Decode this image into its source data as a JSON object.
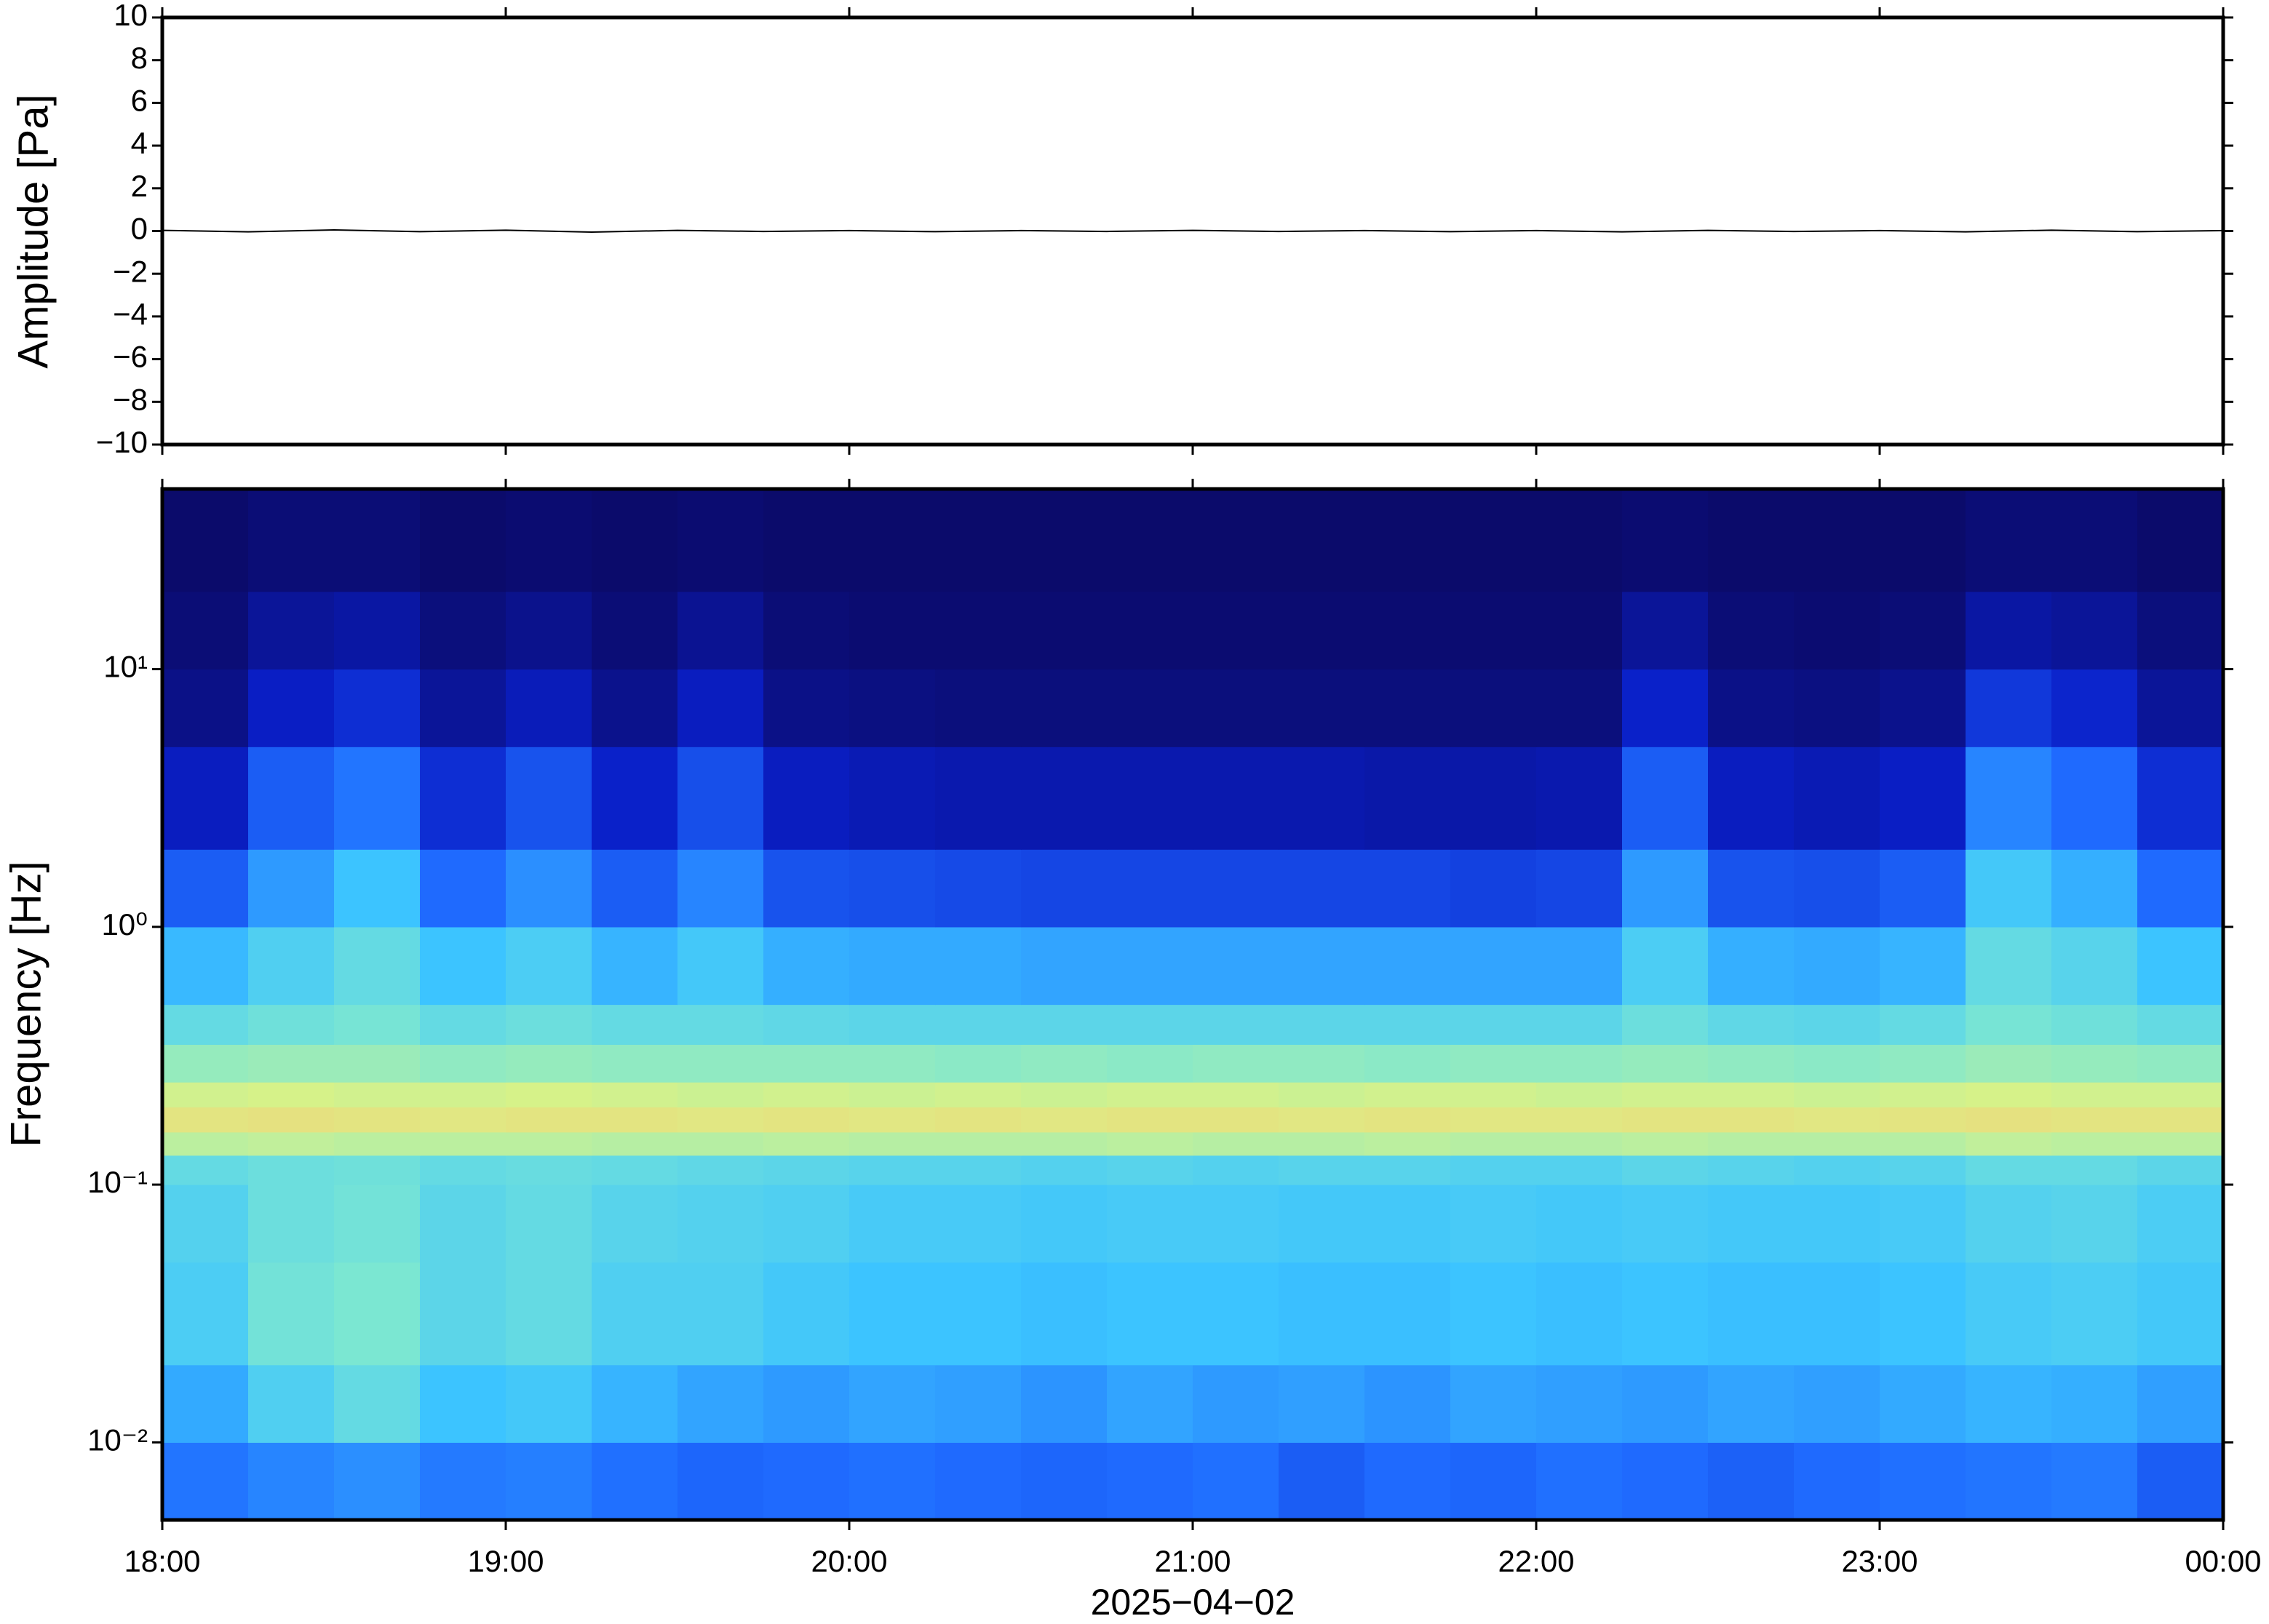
{
  "chart_data": [
    {
      "type": "line",
      "ylabel": "Amplitude [Pa]",
      "color": "#000000",
      "xlim": [
        18,
        24
      ],
      "x": [
        18,
        18.25,
        18.5,
        18.75,
        19,
        19.25,
        19.5,
        19.75,
        20,
        20.25,
        20.5,
        20.75,
        21,
        21.25,
        21.5,
        21.75,
        22,
        22.25,
        22.5,
        22.75,
        23,
        23.25,
        23.5,
        23.75,
        24
      ],
      "values": [
        0.03,
        -0.04,
        0.05,
        -0.03,
        0.04,
        -0.05,
        0.03,
        -0.02,
        0.02,
        -0.03,
        0.02,
        -0.02,
        0.03,
        -0.02,
        0.02,
        -0.03,
        0.02,
        -0.04,
        0.03,
        -0.02,
        0.02,
        -0.04,
        0.04,
        -0.03,
        0.02
      ],
      "ylim": [
        -10,
        10
      ],
      "yticks": [
        {
          "value": -10,
          "label": "−10"
        },
        {
          "value": -8,
          "label": "−8"
        },
        {
          "value": -6,
          "label": "−6"
        },
        {
          "value": -4,
          "label": "−4"
        },
        {
          "value": -2,
          "label": "−2"
        },
        0,
        2,
        4,
        6,
        8,
        10
      ]
    },
    {
      "type": "spectrogram",
      "ylabel": "Frequency [Hz]",
      "xlabel": "2025−04−02",
      "xlim": [
        18,
        24
      ],
      "xticks": [
        {
          "value": 18,
          "label": "18:00"
        },
        {
          "value": 19,
          "label": "19:00"
        },
        {
          "value": 20,
          "label": "20:00"
        },
        {
          "value": 21,
          "label": "21:00"
        },
        {
          "value": 22,
          "label": "22:00"
        },
        {
          "value": 23,
          "label": "23:00"
        },
        {
          "value": 24,
          "label": "00:00"
        }
      ],
      "ylim": [
        0.005,
        50
      ],
      "log_y": true,
      "yticks": [
        {
          "value": 0.01,
          "label": "10⁻²"
        },
        {
          "value": 0.1,
          "label": "10⁻¹"
        },
        {
          "value": 1,
          "label": "10⁰"
        },
        {
          "value": 10,
          "label": "10¹"
        }
      ],
      "colormap": [
        "#0b0b6b",
        "#0a1fc8",
        "#1f6cff",
        "#3cc4ff",
        "#7ee8d0",
        "#d8f288",
        "#ffc070"
      ],
      "time_bins": [
        18,
        18.25,
        18.5,
        18.75,
        19,
        19.25,
        19.5,
        19.75,
        20,
        20.25,
        20.5,
        20.75,
        21,
        21.25,
        21.5,
        21.75,
        22,
        22.25,
        22.5,
        22.75,
        23,
        23.25,
        23.5,
        23.75,
        24
      ],
      "freq_bins": [
        0.005,
        0.01,
        0.02,
        0.05,
        0.1,
        0.13,
        0.16,
        0.2,
        0.25,
        0.35,
        0.5,
        1,
        2,
        5,
        10,
        20,
        50
      ],
      "z": [
        [
          0.35,
          0.38,
          0.4,
          0.36,
          0.37,
          0.34,
          0.32,
          0.33,
          0.34,
          0.33,
          0.32,
          0.33,
          0.34,
          0.3,
          0.33,
          0.32,
          0.34,
          0.33,
          0.31,
          0.33,
          0.34,
          0.35,
          0.36,
          0.3
        ],
        [
          0.45,
          0.55,
          0.6,
          0.5,
          0.52,
          0.47,
          0.44,
          0.42,
          0.44,
          0.43,
          0.41,
          0.44,
          0.42,
          0.43,
          0.41,
          0.44,
          0.43,
          0.42,
          0.44,
          0.43,
          0.45,
          0.47,
          0.46,
          0.43
        ],
        [
          0.54,
          0.64,
          0.66,
          0.58,
          0.6,
          0.55,
          0.55,
          0.52,
          0.5,
          0.5,
          0.49,
          0.5,
          0.5,
          0.49,
          0.49,
          0.5,
          0.49,
          0.5,
          0.49,
          0.49,
          0.5,
          0.53,
          0.54,
          0.52
        ],
        [
          0.56,
          0.62,
          0.64,
          0.58,
          0.6,
          0.57,
          0.56,
          0.55,
          0.53,
          0.53,
          0.52,
          0.53,
          0.53,
          0.52,
          0.52,
          0.53,
          0.52,
          0.53,
          0.52,
          0.52,
          0.53,
          0.56,
          0.57,
          0.54
        ],
        [
          0.6,
          0.62,
          0.63,
          0.6,
          0.61,
          0.6,
          0.59,
          0.58,
          0.57,
          0.57,
          0.56,
          0.57,
          0.56,
          0.57,
          0.57,
          0.56,
          0.56,
          0.58,
          0.57,
          0.56,
          0.57,
          0.6,
          0.6,
          0.58
        ],
        [
          0.78,
          0.79,
          0.78,
          0.78,
          0.78,
          0.77,
          0.77,
          0.78,
          0.77,
          0.77,
          0.77,
          0.78,
          0.77,
          0.77,
          0.78,
          0.77,
          0.77,
          0.78,
          0.77,
          0.77,
          0.77,
          0.79,
          0.78,
          0.78
        ],
        [
          0.88,
          0.89,
          0.88,
          0.87,
          0.88,
          0.88,
          0.87,
          0.88,
          0.87,
          0.88,
          0.87,
          0.88,
          0.88,
          0.87,
          0.88,
          0.87,
          0.87,
          0.88,
          0.88,
          0.87,
          0.88,
          0.89,
          0.88,
          0.88
        ],
        [
          0.82,
          0.83,
          0.82,
          0.82,
          0.83,
          0.82,
          0.81,
          0.82,
          0.81,
          0.82,
          0.81,
          0.82,
          0.82,
          0.81,
          0.82,
          0.82,
          0.81,
          0.82,
          0.82,
          0.81,
          0.82,
          0.83,
          0.82,
          0.82
        ],
        [
          0.71,
          0.72,
          0.72,
          0.7,
          0.71,
          0.7,
          0.7,
          0.7,
          0.7,
          0.69,
          0.7,
          0.69,
          0.7,
          0.7,
          0.69,
          0.7,
          0.7,
          0.71,
          0.7,
          0.69,
          0.7,
          0.72,
          0.71,
          0.7
        ],
        [
          0.6,
          0.63,
          0.65,
          0.6,
          0.62,
          0.6,
          0.6,
          0.59,
          0.58,
          0.58,
          0.58,
          0.58,
          0.58,
          0.58,
          0.58,
          0.58,
          0.58,
          0.62,
          0.59,
          0.58,
          0.6,
          0.65,
          0.63,
          0.6
        ],
        [
          0.48,
          0.55,
          0.6,
          0.5,
          0.54,
          0.47,
          0.52,
          0.46,
          0.45,
          0.45,
          0.44,
          0.44,
          0.44,
          0.44,
          0.44,
          0.44,
          0.44,
          0.54,
          0.46,
          0.45,
          0.47,
          0.6,
          0.57,
          0.5
        ],
        [
          0.3,
          0.42,
          0.5,
          0.33,
          0.4,
          0.3,
          0.38,
          0.28,
          0.27,
          0.26,
          0.25,
          0.25,
          0.25,
          0.25,
          0.25,
          0.24,
          0.25,
          0.42,
          0.28,
          0.27,
          0.3,
          0.52,
          0.46,
          0.33
        ],
        [
          0.15,
          0.3,
          0.35,
          0.2,
          0.28,
          0.17,
          0.27,
          0.15,
          0.13,
          0.12,
          0.12,
          0.12,
          0.12,
          0.12,
          0.11,
          0.11,
          0.12,
          0.3,
          0.15,
          0.13,
          0.16,
          0.38,
          0.33,
          0.2
        ],
        [
          0.05,
          0.16,
          0.2,
          0.08,
          0.14,
          0.06,
          0.15,
          0.05,
          0.04,
          0.03,
          0.03,
          0.03,
          0.03,
          0.03,
          0.03,
          0.03,
          0.03,
          0.17,
          0.05,
          0.04,
          0.06,
          0.22,
          0.18,
          0.08
        ],
        [
          0.02,
          0.08,
          0.1,
          0.03,
          0.06,
          0.02,
          0.07,
          0.02,
          0.01,
          0.01,
          0.01,
          0.01,
          0.01,
          0.01,
          0.01,
          0.01,
          0.01,
          0.08,
          0.02,
          0.01,
          0.02,
          0.1,
          0.08,
          0.03
        ],
        [
          0,
          0.02,
          0.02,
          0,
          0.01,
          0,
          0.01,
          0,
          0,
          0,
          0,
          0,
          0,
          0,
          0,
          0,
          0,
          0.01,
          0,
          0,
          0,
          0.02,
          0.02,
          0
        ]
      ]
    }
  ]
}
